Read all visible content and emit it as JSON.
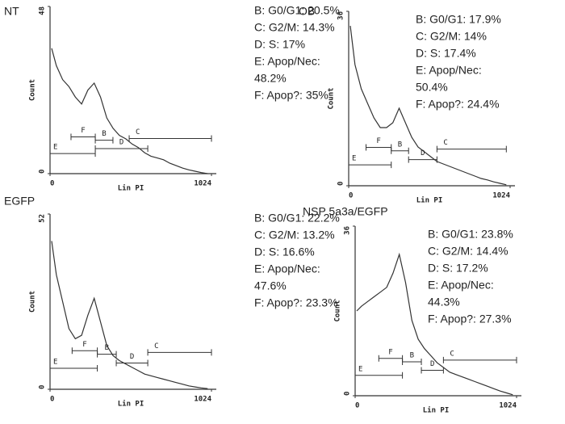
{
  "chart_data": [
    {
      "type": "line",
      "title": "NT",
      "xlabel": "Lin PI",
      "ylabel": "Count",
      "xlim": [
        0,
        1024
      ],
      "xticks": [
        0,
        1024
      ],
      "ylim": [
        0,
        48
      ],
      "yticks": [
        0,
        48
      ],
      "color": "#333333",
      "x": [
        10,
        40,
        80,
        120,
        160,
        200,
        240,
        280,
        320,
        360,
        400,
        440,
        480,
        520,
        560,
        600,
        640,
        680,
        720,
        760,
        800,
        840,
        880,
        920,
        960,
        1000
      ],
      "values": [
        36,
        31,
        27,
        25,
        22,
        20,
        24,
        26,
        22,
        16,
        13,
        11,
        10,
        8.5,
        7.5,
        6,
        5,
        4.5,
        4,
        3,
        2.3,
        1.6,
        1.1,
        0.7,
        0.3,
        0
      ],
      "gates": [
        {
          "label": "E",
          "start": 0,
          "end": 287
        },
        {
          "label": "F",
          "start": 133,
          "end": 287
        },
        {
          "label": "B",
          "start": 287,
          "end": 399
        },
        {
          "label": "D",
          "start": 287,
          "end": 620
        },
        {
          "label": "C",
          "start": 502,
          "end": 1024
        }
      ],
      "stats": [
        "B: G0/G1: 20.5%",
        "C: G2/M: 14.3%",
        "D: S: 17%",
        "E: Apop/Nec:",
        "48.2%",
        "F: Apop?: 35%"
      ]
    },
    {
      "type": "line",
      "title": "OB",
      "xlabel": "Lin PI",
      "ylabel": "Count",
      "xlim": [
        0,
        1024
      ],
      "xticks": [
        0,
        1024
      ],
      "ylim": [
        0,
        36
      ],
      "yticks": [
        0,
        36
      ],
      "color": "#333333",
      "x": [
        10,
        40,
        80,
        120,
        160,
        200,
        240,
        280,
        320,
        360,
        400,
        440,
        480,
        520,
        560,
        600,
        640,
        680,
        720,
        760,
        800,
        840,
        880,
        920,
        960,
        1000
      ],
      "values": [
        33,
        25,
        20,
        17,
        14,
        12,
        12,
        13,
        16,
        13,
        10,
        8,
        7,
        6,
        5,
        4.5,
        4,
        3.5,
        3,
        2.5,
        2,
        1.5,
        1.2,
        0.8,
        0.5,
        0.2
      ],
      "gates": [
        {
          "label": "E",
          "start": 0,
          "end": 270
        },
        {
          "label": "F",
          "start": 110,
          "end": 270
        },
        {
          "label": "B",
          "start": 270,
          "end": 380
        },
        {
          "label": "D",
          "start": 380,
          "end": 560
        },
        {
          "label": "C",
          "start": 560,
          "end": 1000
        }
      ],
      "stats": [
        "B: G0/G1: 17.9%",
        "C: G2/M: 14%",
        "D: S: 17.4%",
        "E: Apop/Nec:",
        "50.4%",
        "F: Apop?: 24.4%"
      ]
    },
    {
      "type": "line",
      "title": "EGFP",
      "xlabel": "Lin PI",
      "ylabel": "Count",
      "xlim": [
        0,
        1024
      ],
      "xticks": [
        0,
        1024
      ],
      "ylim": [
        0,
        52
      ],
      "yticks": [
        0,
        52
      ],
      "color": "#333333",
      "x": [
        10,
        40,
        80,
        120,
        160,
        200,
        240,
        280,
        320,
        360,
        400,
        440,
        480,
        520,
        560,
        600,
        640,
        680,
        720,
        760,
        800,
        840,
        880,
        920,
        960,
        1000
      ],
      "values": [
        44,
        34,
        26,
        18,
        15,
        16,
        22,
        27,
        20,
        13,
        10,
        8.5,
        7.5,
        6.5,
        5.5,
        4.5,
        4,
        3.5,
        3,
        2.5,
        2,
        1.5,
        1,
        0.7,
        0.4,
        0.2
      ],
      "gates": [
        {
          "label": "E",
          "start": 0,
          "end": 300
        },
        {
          "label": "F",
          "start": 140,
          "end": 300
        },
        {
          "label": "B",
          "start": 300,
          "end": 420
        },
        {
          "label": "D",
          "start": 420,
          "end": 620
        },
        {
          "label": "C",
          "start": 620,
          "end": 1024
        }
      ],
      "stats": [
        "B: G0/G1: 22.2%",
        "C: G2/M: 13.2%",
        "D: S: 16.6%",
        "E: Apop/Nec:",
        "47.6%",
        "F: Apop?: 23.3%"
      ]
    },
    {
      "type": "line",
      "title": "NSP 5a3a/EGFP",
      "xlabel": "Lin PI",
      "ylabel": "Count",
      "xlim": [
        0,
        1024
      ],
      "xticks": [
        0,
        1024
      ],
      "ylim": [
        0,
        36
      ],
      "yticks": [
        0,
        36
      ],
      "color": "#333333",
      "x": [
        10,
        40,
        80,
        120,
        160,
        200,
        240,
        280,
        320,
        360,
        400,
        440,
        480,
        520,
        560,
        600,
        640,
        680,
        720,
        760,
        800,
        840,
        880,
        920,
        960,
        1000
      ],
      "values": [
        18,
        19,
        20,
        21,
        22,
        23,
        26,
        30,
        24,
        16,
        12,
        10,
        8.5,
        7,
        6,
        5,
        4.5,
        4,
        3.5,
        3,
        2.5,
        2,
        1.5,
        1,
        0.6,
        0.2
      ],
      "gates": [
        {
          "label": "E",
          "start": 0,
          "end": 300
        },
        {
          "label": "F",
          "start": 150,
          "end": 300
        },
        {
          "label": "B",
          "start": 300,
          "end": 420
        },
        {
          "label": "D",
          "start": 420,
          "end": 560
        },
        {
          "label": "C",
          "start": 560,
          "end": 1024
        }
      ],
      "stats": [
        "B: G0/G1: 23.8%",
        "C: G2/M: 14.4%",
        "D: S: 17.2%",
        "E: Apop/Nec:",
        "44.3%",
        "F: Apop?: 27.3%"
      ]
    }
  ]
}
